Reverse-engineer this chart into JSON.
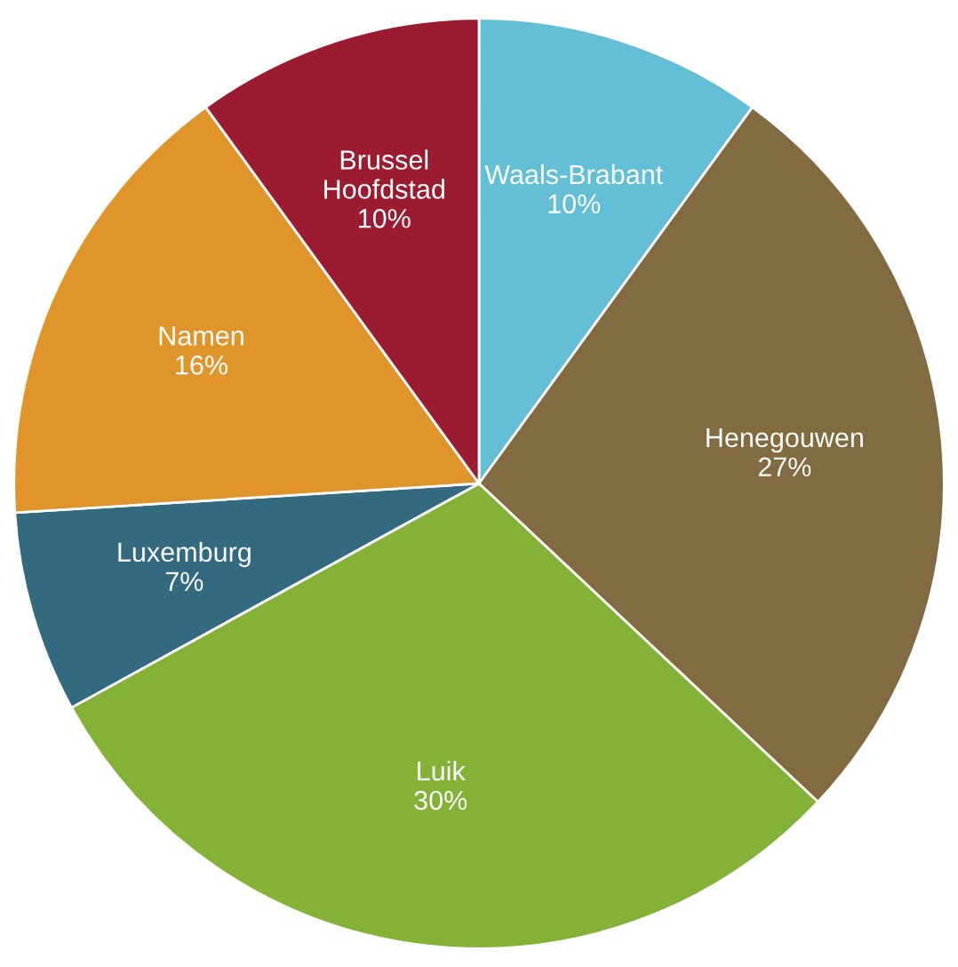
{
  "chart_data": {
    "type": "pie",
    "categories": [
      "Waals-Brabant",
      "Henegouwen",
      "Luik",
      "Luxemburg",
      "Namen",
      "Brussel Hoofdstad"
    ],
    "values": [
      10,
      27,
      30,
      7,
      16,
      10
    ],
    "value_labels": [
      "10%",
      "27%",
      "30%",
      "7%",
      "16%",
      "10%"
    ],
    "colors": [
      "#62bfd6",
      "#826b40",
      "#84b236",
      "#336a80",
      "#e0952b",
      "#9b1c30"
    ]
  }
}
